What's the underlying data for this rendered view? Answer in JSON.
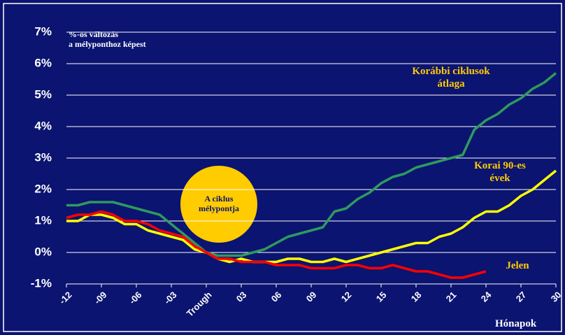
{
  "chart_data": {
    "type": "line",
    "subtitle": "%-os változás\na mélyponthoz képest",
    "annotation": "A ciklus\nmélypontja",
    "x_label": "Hónapok",
    "x": [
      -12,
      -11,
      -10,
      -9,
      -8,
      -7,
      -6,
      -5,
      -4,
      -3,
      -2,
      -1,
      0,
      1,
      2,
      3,
      4,
      5,
      6,
      7,
      8,
      9,
      10,
      11,
      12,
      13,
      14,
      15,
      16,
      17,
      18,
      19,
      20,
      21,
      22,
      23,
      24,
      25,
      26,
      27,
      28,
      29,
      30
    ],
    "xlim": [
      -12,
      30
    ],
    "xticks": [
      -12,
      {
        "value": -9,
        "label": "-09"
      },
      {
        "value": -6,
        "label": "-06"
      },
      {
        "value": -3,
        "label": "-03"
      },
      {
        "value": 0,
        "label": "Trough"
      },
      {
        "value": 3,
        "label": "03"
      },
      {
        "value": 6,
        "label": "06"
      },
      {
        "value": 9,
        "label": "09"
      },
      12,
      15,
      18,
      21,
      24,
      27,
      30
    ],
    "ylim": [
      -1,
      7
    ],
    "yticks": [
      {
        "value": -1,
        "label": "-1%"
      },
      {
        "value": 0,
        "label": "0%"
      },
      {
        "value": 1,
        "label": "1%"
      },
      {
        "value": 2,
        "label": "2%"
      },
      {
        "value": 3,
        "label": "3%"
      },
      {
        "value": 4,
        "label": "4%"
      },
      {
        "value": 5,
        "label": "5%"
      },
      {
        "value": 6,
        "label": "6%"
      },
      {
        "value": 7,
        "label": "7%"
      }
    ],
    "grid": true,
    "series": [
      {
        "name": "Korábbi ciklusok\nátlaga",
        "color": "#2e9a5e",
        "values": [
          1.5,
          1.5,
          1.6,
          1.6,
          1.6,
          1.5,
          1.4,
          1.3,
          1.2,
          0.9,
          0.6,
          0.3,
          0.0,
          -0.1,
          -0.1,
          -0.1,
          0.0,
          0.1,
          0.3,
          0.5,
          0.6,
          0.7,
          0.8,
          1.3,
          1.4,
          1.7,
          1.9,
          2.2,
          2.4,
          2.5,
          2.7,
          2.8,
          2.9,
          3.0,
          3.1,
          3.9,
          4.2,
          4.4,
          4.7,
          4.9,
          5.2,
          5.4,
          5.7
        ]
      },
      {
        "name": "Korai 90-es\névek",
        "color": "#ffff00",
        "values": [
          1.0,
          1.0,
          1.2,
          1.2,
          1.1,
          0.9,
          0.9,
          0.7,
          0.6,
          0.5,
          0.4,
          0.1,
          0.0,
          -0.2,
          -0.3,
          -0.2,
          -0.3,
          -0.3,
          -0.3,
          -0.2,
          -0.2,
          -0.3,
          -0.3,
          -0.2,
          -0.3,
          -0.2,
          -0.1,
          0.0,
          0.1,
          0.2,
          0.3,
          0.3,
          0.5,
          0.6,
          0.8,
          1.1,
          1.3,
          1.3,
          1.5,
          1.8,
          2.0,
          2.3,
          2.6
        ]
      },
      {
        "name": "Jelen",
        "color": "#ff0000",
        "values": [
          1.1,
          1.2,
          1.2,
          1.3,
          1.2,
          1.0,
          1.0,
          0.9,
          0.7,
          0.6,
          0.5,
          0.2,
          0.0,
          -0.2,
          -0.2,
          -0.3,
          -0.3,
          -0.3,
          -0.4,
          -0.4,
          -0.4,
          -0.5,
          -0.5,
          -0.5,
          -0.4,
          -0.4,
          -0.5,
          -0.5,
          -0.4,
          -0.5,
          -0.6,
          -0.6,
          -0.7,
          -0.8,
          -0.8,
          -0.7,
          -0.6,
          null,
          null,
          null,
          null,
          null,
          null
        ]
      }
    ]
  }
}
